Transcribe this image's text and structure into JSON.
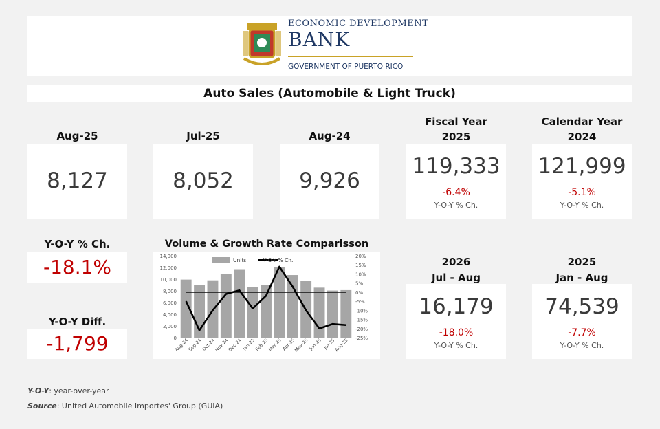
{
  "header": {
    "bank_line1": "ECONOMIC DEVELOPMENT",
    "bank_line2": "BANK",
    "bank_line3": "GOVERNMENT OF PUERTO RICO"
  },
  "title": "Auto Sales (Automobile & Light Truck)",
  "kpis": [
    {
      "label": "Aug-25",
      "value": "8,127"
    },
    {
      "label": "Jul-25",
      "value": "8,052"
    },
    {
      "label": "Aug-24",
      "value": "9,926"
    }
  ],
  "fiscal": {
    "label1": "Fiscal Year",
    "label2": "2025",
    "value": "119,333",
    "pct": "-6.4%",
    "note": "Y-O-Y % Ch."
  },
  "calendar": {
    "label1": "Calendar Year",
    "label2": "2024",
    "value": "121,999",
    "pct": "-5.1%",
    "note": "Y-O-Y % Ch."
  },
  "period1": {
    "label1": "2026",
    "label2": "Jul - Aug",
    "value": "16,179",
    "pct": "-18.0%",
    "note": "Y-O-Y % Ch."
  },
  "period2": {
    "label1": "2025",
    "label2": "Jan - Aug",
    "value": "74,539",
    "pct": "-7.7%",
    "note": "Y-O-Y % Ch."
  },
  "yoy_pct": {
    "label": "Y-O-Y % Ch.",
    "value": "-18.1%"
  },
  "yoy_diff": {
    "label": "Y-O-Y Diff.",
    "value": "-1,799"
  },
  "footnote": {
    "yoy_term": "Y-O-Y",
    "yoy_def": ": year-over-year",
    "source_term": "Source",
    "source_def": ": United Automobile Importes' Group (GUIA)"
  },
  "colors": {
    "red": "#c00000",
    "bar": "#a6a6a6",
    "gold": "#c9a227"
  },
  "chart_data": {
    "type": "bar",
    "title": "Volume & Growth Rate Comparisson",
    "categories": [
      "Aug-24",
      "Sep-24",
      "Oct-24",
      "Nov-24",
      "Dec-24",
      "Jan-25",
      "Feb-25",
      "Mar-25",
      "Apr-25",
      "May-25",
      "Jun-25",
      "Jul-25",
      "Aug-25"
    ],
    "series": [
      {
        "name": "Units",
        "axis": "left",
        "type": "bar",
        "values": [
          9926,
          9000,
          9800,
          10900,
          11700,
          8700,
          9050,
          12100,
          10700,
          9700,
          8550,
          8052,
          8127
        ]
      },
      {
        "name": "Y-O-Y % Ch.",
        "axis": "right",
        "type": "line",
        "values": [
          -5,
          -21,
          -10,
          -1,
          1,
          -9,
          -2,
          14,
          3,
          -10,
          -20,
          -17.5,
          -18.1
        ]
      }
    ],
    "ylim_left": [
      0,
      14000
    ],
    "yticks_left": [
      "14,000",
      "12,000",
      "10,000",
      "8,000",
      "6,000",
      "4,000",
      "2,000",
      "0"
    ],
    "ylim_right": [
      -25,
      20
    ],
    "yticks_right": [
      "20%",
      "15%",
      "10%",
      "5%",
      "0%",
      "-5%",
      "-10%",
      "-15%",
      "-20%",
      "-25%"
    ],
    "legend": [
      "Units",
      "Y-O-Y % Ch."
    ]
  }
}
